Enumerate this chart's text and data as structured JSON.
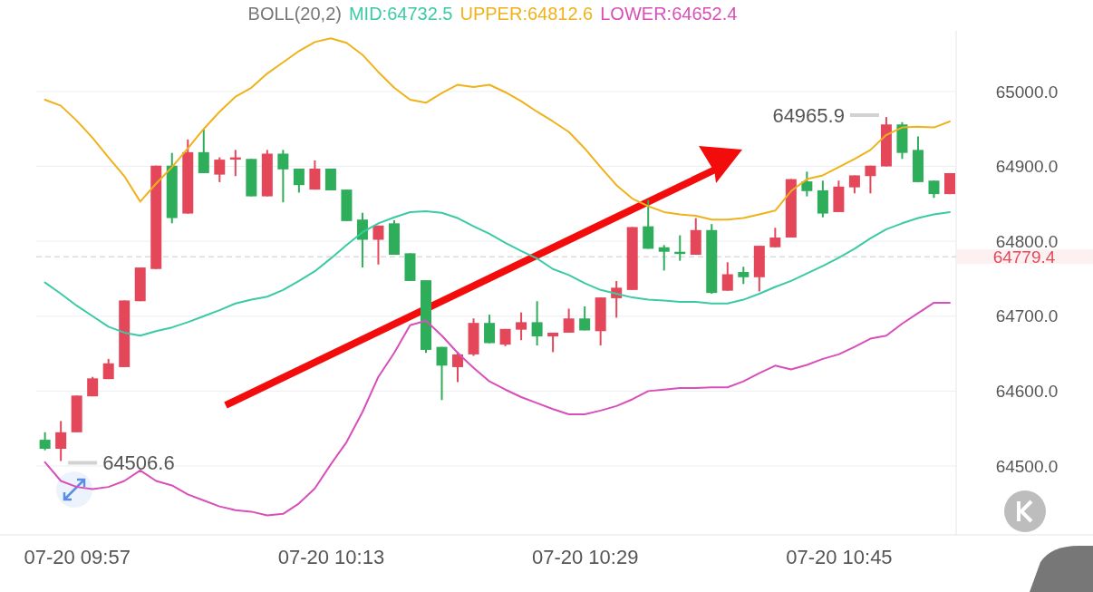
{
  "chart_data": {
    "type": "candlestick",
    "legend_title": "BOLL(20,2)",
    "legend": "top",
    "grid": "y",
    "categories": [
      null,
      null,
      "07-20 09:57",
      null,
      null,
      null,
      null,
      null,
      null,
      null,
      null,
      null,
      null,
      null,
      null,
      null,
      null,
      null,
      "07-20 10:13",
      null,
      null,
      null,
      null,
      null,
      null,
      null,
      null,
      null,
      null,
      null,
      null,
      null,
      null,
      null,
      "07-20 10:29",
      null,
      null,
      null,
      null,
      null,
      null,
      null,
      null,
      null,
      null,
      null,
      null,
      null,
      null,
      null,
      "07-20 10:45",
      null,
      null,
      null,
      null,
      null,
      null,
      null
    ],
    "ohlc": [
      [
        64535,
        64545,
        64521,
        64523
      ],
      [
        64523,
        64560,
        64506.6,
        64545
      ],
      [
        64545,
        64594,
        64545,
        64594
      ],
      [
        64593,
        64619,
        64593,
        64617
      ],
      [
        64616,
        64643,
        64616,
        64637
      ],
      [
        64632,
        64721,
        64632,
        64721
      ],
      [
        64720,
        64765,
        64720,
        64765
      ],
      [
        64763,
        64901,
        64763,
        64901
      ],
      [
        64901,
        64918,
        64824,
        64831
      ],
      [
        64837,
        64936,
        64837,
        64919
      ],
      [
        64919,
        64950,
        64891,
        64891
      ],
      [
        64889,
        64912,
        64879,
        64909
      ],
      [
        64909,
        64922,
        64887,
        64912
      ],
      [
        64910,
        64910,
        64860,
        64860
      ],
      [
        64860,
        64922,
        64860,
        64917
      ],
      [
        64917,
        64922,
        64852,
        64896
      ],
      [
        64897,
        64897,
        64865,
        64875
      ],
      [
        64869,
        64908,
        64869,
        64897
      ],
      [
        64897,
        64897,
        64868,
        64868
      ],
      [
        64869,
        64869,
        64827,
        64827
      ],
      [
        64829,
        64838,
        64765,
        64802
      ],
      [
        64802,
        64821,
        64769,
        64821
      ],
      [
        64824,
        64828,
        64782,
        64782
      ],
      [
        64784,
        64784,
        64747,
        64747
      ],
      [
        64748,
        64748,
        64651,
        64655
      ],
      [
        64659,
        64659,
        64588,
        64634
      ],
      [
        64632,
        64652,
        64612,
        64649
      ],
      [
        64649,
        64697,
        64647,
        64691
      ],
      [
        64691,
        64702,
        64664,
        64664
      ],
      [
        64662,
        64683,
        64660,
        64683
      ],
      [
        64682,
        64705,
        64668,
        64692
      ],
      [
        64692,
        64720,
        64661,
        64673
      ],
      [
        64673,
        64678,
        64652,
        64678
      ],
      [
        64678,
        64710,
        64678,
        64697
      ],
      [
        64697,
        64713,
        64681,
        64681
      ],
      [
        64680,
        64725,
        64661,
        64725
      ],
      [
        64724,
        64747,
        64698,
        64738
      ],
      [
        64735,
        64819,
        64735,
        64819
      ],
      [
        64820,
        64855,
        64790,
        64790
      ],
      [
        64792,
        64795,
        64761,
        64786
      ],
      [
        64786,
        64808,
        64774,
        64783
      ],
      [
        64782,
        64831,
        64782,
        64815
      ],
      [
        64815,
        64823,
        64730,
        64731
      ],
      [
        64734,
        64772,
        64734,
        64756
      ],
      [
        64759,
        64766,
        64743,
        64752
      ],
      [
        64752,
        64794,
        64733,
        64794
      ],
      [
        64792,
        64818,
        64792,
        64805
      ],
      [
        64805,
        64883,
        64805,
        64883
      ],
      [
        64880,
        64893,
        64860,
        64867
      ],
      [
        64868,
        64881,
        64832,
        64837
      ],
      [
        64839,
        64881,
        64839,
        64873
      ],
      [
        64872,
        64888,
        64864,
        64888
      ],
      [
        64887,
        64901,
        64864,
        64901
      ],
      [
        64900,
        64965.9,
        64900,
        64956
      ],
      [
        64956,
        64959,
        64910,
        64918
      ],
      [
        64922,
        64940,
        64879,
        64879
      ],
      [
        64881,
        64881,
        64858,
        64863
      ],
      [
        64863,
        64891,
        64863,
        64891
      ]
    ],
    "colors": [
      "#2eae5b",
      "#e4475a",
      "#e4475a",
      "#e4475a",
      "#e4475a",
      "#e4475a",
      "#e4475a",
      "#e4475a",
      "#2eae5b",
      "#e4475a",
      "#2eae5b",
      "#e4475a",
      "#e4475a",
      "#2eae5b",
      "#e4475a",
      "#2eae5b",
      "#2eae5b",
      "#e4475a",
      "#2eae5b",
      "#2eae5b",
      "#2eae5b",
      "#e4475a",
      "#2eae5b",
      "#2eae5b",
      "#2eae5b",
      "#2eae5b",
      "#e4475a",
      "#e4475a",
      "#2eae5b",
      "#e4475a",
      "#e4475a",
      "#2eae5b",
      "#e4475a",
      "#e4475a",
      "#2eae5b",
      "#e4475a",
      "#e4475a",
      "#e4475a",
      "#2eae5b",
      "#2eae5b",
      "#2eae5b",
      "#e4475a",
      "#2eae5b",
      "#e4475a",
      "#2eae5b",
      "#e4475a",
      "#e4475a",
      "#e4475a",
      "#2eae5b",
      "#2eae5b",
      "#e4475a",
      "#e4475a",
      "#e4475a",
      "#e4475a",
      "#2eae5b",
      "#2eae5b",
      "#2eae5b",
      "#e4475a"
    ],
    "series": [
      {
        "type": "line",
        "name": "MID:64732.5",
        "color": "#3ccaa5",
        "values": [
          64745,
          64730,
          64714,
          64700,
          64686,
          64678,
          64674,
          64680,
          64685,
          64692,
          64700,
          64708,
          64717,
          64722,
          64726,
          64735,
          64747,
          64760,
          64777,
          64795,
          64812,
          64824,
          64832,
          64839,
          64840,
          64838,
          64831,
          64820,
          64810,
          64798,
          64787,
          64777,
          64763,
          64755,
          64744,
          64735,
          64730,
          64725,
          64722,
          64721,
          64719,
          64719,
          64717,
          64717,
          64722,
          64730,
          64739,
          64747,
          64757,
          64767,
          64778,
          64790,
          64804,
          64816,
          64824,
          64831,
          64836,
          64839
        ]
      },
      {
        "type": "line",
        "name": "UPPER:64812.6",
        "color": "#f0b21b",
        "values": [
          64989,
          64981,
          64961,
          64938,
          64912,
          64887,
          64853,
          64877,
          64899,
          64924,
          64950,
          64973,
          64993,
          65005,
          65024,
          65039,
          65054,
          65066,
          65071,
          65065,
          65049,
          65026,
          65005,
          64989,
          64985,
          64998,
          65009,
          65006,
          65009,
          64999,
          64987,
          64973,
          64960,
          64946,
          64924,
          64899,
          64875,
          64857,
          64847,
          64839,
          64836,
          64834,
          64829,
          64829,
          64831,
          64836,
          64841,
          64867,
          64883,
          64888,
          64899,
          64910,
          64922,
          64942,
          64952,
          64953,
          64952,
          64960
        ]
      },
      {
        "type": "line",
        "name": "LOWER:64652.4",
        "color": "#d94fb9",
        "values": [
          64505,
          64480,
          64472,
          64469,
          64472,
          64480,
          64494,
          64480,
          64474,
          64462,
          64454,
          64446,
          64441,
          64439,
          64434,
          64436,
          64450,
          64470,
          64502,
          64532,
          64572,
          64619,
          64651,
          64688,
          64694,
          64674,
          64651,
          64631,
          64613,
          64602,
          64592,
          64584,
          64576,
          64569,
          64569,
          64574,
          64580,
          64589,
          64600,
          64602,
          64604,
          64604,
          64605,
          64605,
          64613,
          64624,
          64634,
          64629,
          64635,
          64643,
          64649,
          64659,
          64670,
          64674,
          64690,
          64704,
          64718,
          64718
        ]
      }
    ],
    "ylim": [
      64408,
      65081
    ],
    "yticks": [
      {
        "value": 64500,
        "label": "64500.0"
      },
      {
        "value": 64600,
        "label": "64600.0"
      },
      {
        "value": 64700,
        "label": "64700.0"
      },
      {
        "value": 64800,
        "label": "64800.0"
      },
      {
        "value": 64900,
        "label": "64900.0"
      },
      {
        "value": 65000,
        "label": "65000.0"
      }
    ],
    "ref_lines": [
      {
        "axis": "y",
        "value": 64779.4,
        "label": "64779.4",
        "color": "#c9c9c9",
        "line_style": "dashed"
      }
    ],
    "annotations": [
      "64965.9",
      "64506.6"
    ]
  }
}
